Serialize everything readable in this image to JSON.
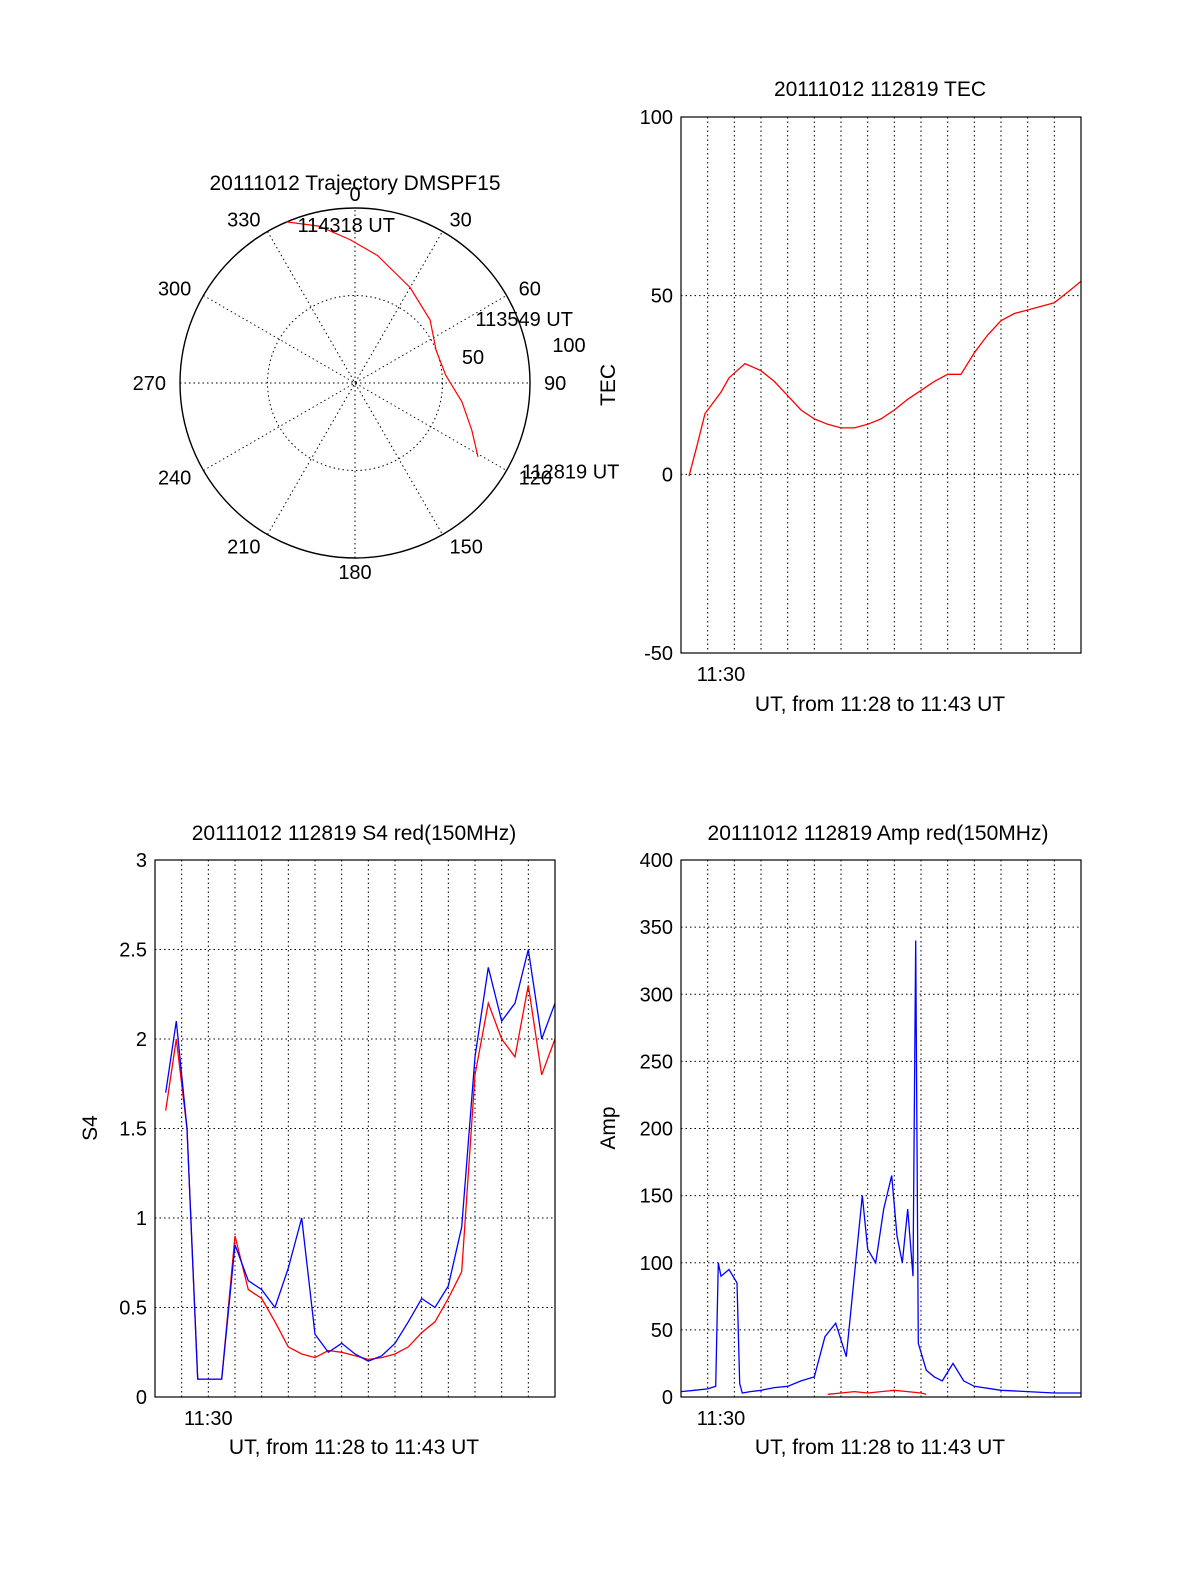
{
  "chart_data": [
    {
      "type": "polar",
      "title": "20111012 Trajectory DMSPF15",
      "angle_labels": [
        "0",
        "30",
        "60",
        "90",
        "120",
        "150",
        "180",
        "210",
        "240",
        "270",
        "300",
        "330"
      ],
      "radial_labels": [
        "50",
        "100"
      ],
      "radius_max": 100,
      "trajectory": {
        "color": "#ff0000",
        "points": [
          {
            "az": 121,
            "r": 82
          },
          {
            "az": 112,
            "r": 72
          },
          {
            "az": 100,
            "r": 62
          },
          {
            "az": 85,
            "r": 52
          },
          {
            "az": 68,
            "r": 50
          },
          {
            "az": 50,
            "r": 56
          },
          {
            "az": 30,
            "r": 63
          },
          {
            "az": 10,
            "r": 74
          },
          {
            "az": -2,
            "r": 82
          },
          {
            "az": -13,
            "r": 92
          },
          {
            "az": -23,
            "r": 100
          }
        ]
      },
      "annotations": [
        {
          "text": "114318 UT",
          "az": -20,
          "r": 96
        },
        {
          "text": "113549 UT",
          "az": 62,
          "r": 78
        },
        {
          "text": "112819 UT",
          "az": 118,
          "r": 108
        }
      ]
    },
    {
      "type": "line",
      "title": "20111012 112819 TEC",
      "xlabel": "UT, from 11:28 to 11:43 UT",
      "ylabel": "TEC",
      "xlim": [
        0,
        15
      ],
      "ylim": [
        -50,
        100
      ],
      "yticks": [
        -50,
        0,
        50,
        100
      ],
      "xtick_labels": [
        {
          "x": 1.5,
          "label": "11:30"
        }
      ],
      "grid": true,
      "series": [
        {
          "color": "#ff0000",
          "x": [
            0.3,
            0.6,
            0.9,
            1.2,
            1.5,
            1.8,
            2.1,
            2.4,
            3.0,
            3.5,
            4.0,
            4.5,
            5.0,
            5.5,
            6.0,
            6.5,
            7.0,
            7.5,
            8.0,
            8.5,
            9.0,
            9.5,
            10.0,
            10.5,
            11.0,
            11.3,
            11.5,
            12.0,
            12.5,
            13.0,
            13.5,
            14.0,
            14.5,
            15.0
          ],
          "y": [
            -0.5,
            8,
            17,
            20,
            23,
            27,
            29,
            31,
            29,
            26,
            22,
            18,
            15.5,
            14,
            13,
            13,
            14,
            15.5,
            18,
            21,
            23.5,
            26,
            28,
            28,
            34,
            37,
            39,
            43,
            45,
            46,
            47,
            48,
            51,
            54
          ]
        }
      ]
    },
    {
      "type": "line",
      "title": "20111012 112819 S4 red(150MHz)",
      "xlabel": "UT, from 11:28 to 11:43 UT",
      "ylabel": "S4",
      "xlim": [
        0,
        15
      ],
      "ylim": [
        0,
        3
      ],
      "yticks": [
        0,
        0.5,
        1,
        1.5,
        2,
        2.5,
        3
      ],
      "xtick_labels": [
        {
          "x": 2.0,
          "label": "11:30"
        }
      ],
      "grid": true,
      "series": [
        {
          "color": "#ff0000",
          "x": [
            0.4,
            0.8,
            1.2,
            1.6,
            2.0,
            2.5,
            3.0,
            3.5,
            4.0,
            4.5,
            5.0,
            5.5,
            6.0,
            6.5,
            7.0,
            7.5,
            8.0,
            8.5,
            9.0,
            9.5,
            10.0,
            10.5,
            11.0,
            11.5,
            12.0,
            12.5,
            13.0,
            13.5,
            14.0,
            14.5,
            15.0
          ],
          "y": [
            1.6,
            2.0,
            1.5,
            0.1,
            0.1,
            0.1,
            0.9,
            0.6,
            0.55,
            0.42,
            0.28,
            0.24,
            0.22,
            0.26,
            0.25,
            0.23,
            0.21,
            0.22,
            0.24,
            0.28,
            0.36,
            0.42,
            0.55,
            0.7,
            1.8,
            2.2,
            2.0,
            1.9,
            2.3,
            1.8,
            2.0
          ]
        },
        {
          "color": "#0000ff",
          "x": [
            0.4,
            0.8,
            1.2,
            1.6,
            2.0,
            2.5,
            3.0,
            3.5,
            4.0,
            4.5,
            5.0,
            5.5,
            6.0,
            6.5,
            7.0,
            7.5,
            8.0,
            8.5,
            9.0,
            9.5,
            10.0,
            10.5,
            11.0,
            11.5,
            12.0,
            12.5,
            13.0,
            13.5,
            14.0,
            14.5,
            15.0
          ],
          "y": [
            1.7,
            2.1,
            1.5,
            0.1,
            0.1,
            0.1,
            0.85,
            0.65,
            0.6,
            0.5,
            0.72,
            1.0,
            0.35,
            0.25,
            0.3,
            0.24,
            0.2,
            0.23,
            0.3,
            0.42,
            0.55,
            0.5,
            0.62,
            0.95,
            1.9,
            2.4,
            2.1,
            2.2,
            2.5,
            2.0,
            2.2
          ]
        }
      ]
    },
    {
      "type": "line",
      "title": "20111012 112819 Amp red(150MHz)",
      "xlabel": "UT, from 11:28 to 11:43 UT",
      "ylabel": "Amp",
      "xlim": [
        0,
        15
      ],
      "ylim": [
        0,
        400
      ],
      "yticks": [
        0,
        50,
        100,
        150,
        200,
        250,
        300,
        350,
        400
      ],
      "xtick_labels": [
        {
          "x": 1.5,
          "label": "11:30"
        }
      ],
      "grid": true,
      "series": [
        {
          "color": "#0000ff",
          "x": [
            0.0,
            0.5,
            1.0,
            1.3,
            1.4,
            1.5,
            1.8,
            2.1,
            2.2,
            2.3,
            2.6,
            3.0,
            3.5,
            4.0,
            4.5,
            5.0,
            5.4,
            5.8,
            6.2,
            6.5,
            6.8,
            7.0,
            7.3,
            7.6,
            7.9,
            8.1,
            8.3,
            8.5,
            8.7,
            8.8,
            8.9,
            9.2,
            9.5,
            9.8,
            10.2,
            10.6,
            11.0,
            12.0,
            13.0,
            14.0,
            15.0
          ],
          "y": [
            4,
            5,
            6,
            8,
            100,
            90,
            95,
            85,
            10,
            3,
            4,
            5,
            7,
            8,
            12,
            15,
            45,
            55,
            30,
            90,
            150,
            110,
            100,
            140,
            165,
            120,
            100,
            140,
            90,
            340,
            40,
            20,
            15,
            12,
            25,
            12,
            8,
            5,
            4,
            3,
            3
          ]
        },
        {
          "color": "#ff0000",
          "x": [
            5.5,
            6.0,
            6.5,
            7.0,
            7.5,
            8.0,
            8.5,
            9.0,
            9.2
          ],
          "y": [
            2,
            3,
            4,
            3,
            4,
            5,
            4,
            3,
            2
          ]
        }
      ]
    }
  ]
}
